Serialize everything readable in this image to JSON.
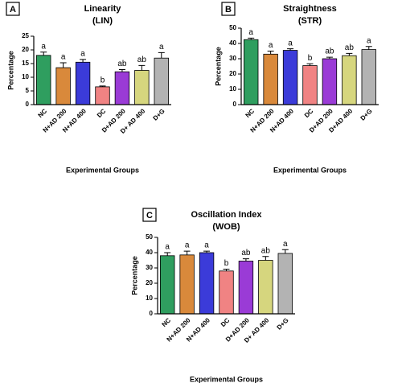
{
  "chart_data": [
    {
      "type": "bar",
      "panel": "A",
      "title": "Linearity",
      "subtitle": "(LIN)",
      "ylabel": "Percentage",
      "xlabel": "Experimental Groups",
      "categories": [
        "NC",
        "N+AD 200",
        "N+AD 400",
        "DC",
        "D+AD 200",
        "D+ AD 400",
        "D+G"
      ],
      "values": [
        18,
        13.5,
        15.5,
        6.5,
        12,
        12.5,
        17
      ],
      "errors": [
        1.2,
        1.8,
        1,
        0.3,
        0.8,
        1.8,
        2
      ],
      "annotations": [
        "a",
        "a",
        "a",
        "b",
        "ab",
        "ab",
        "a"
      ],
      "colors": [
        "#2f9e5f",
        "#d9893b",
        "#3b3bd9",
        "#f08383",
        "#9a3bd6",
        "#d6d67e",
        "#b3b3b3"
      ],
      "ylim": [
        0,
        25
      ],
      "yticks": [
        0,
        5,
        10,
        15,
        20,
        25
      ]
    },
    {
      "type": "bar",
      "panel": "B",
      "title": "Straightness",
      "subtitle": "(STR)",
      "ylabel": "Percentage",
      "xlabel": "Experimental Groups",
      "categories": [
        "NC",
        "N+AD 200",
        "N+AD 400",
        "DC",
        "D+AD 200",
        "D+AD 400",
        "D+G"
      ],
      "values": [
        42.5,
        33,
        35.5,
        25.5,
        30,
        32,
        36
      ],
      "errors": [
        1,
        2,
        1,
        1.2,
        1,
        1.5,
        2
      ],
      "annotations": [
        "a",
        "a",
        "a",
        "b",
        "ab",
        "ab",
        "a"
      ],
      "colors": [
        "#2f9e5f",
        "#d9893b",
        "#3b3bd9",
        "#f08383",
        "#9a3bd6",
        "#d6d67e",
        "#b3b3b3"
      ],
      "ylim": [
        0,
        50
      ],
      "yticks": [
        0,
        10,
        20,
        30,
        40,
        50
      ]
    },
    {
      "type": "bar",
      "panel": "C",
      "title": "Oscillation Index",
      "subtitle": "(WOB)",
      "ylabel": "Percentage",
      "xlabel": "Experimental Groups",
      "categories": [
        "NC",
        "N+AD 200",
        "N+AD 400",
        "DC",
        "D+AD 200",
        "D+ AD 400",
        "D+G"
      ],
      "values": [
        38,
        38.5,
        40,
        28,
        34.5,
        35,
        39.5
      ],
      "errors": [
        2,
        2.5,
        1,
        1.2,
        1.5,
        2.5,
        2.5
      ],
      "annotations": [
        "a",
        "a",
        "a",
        "b",
        "ab",
        "ab",
        "a"
      ],
      "colors": [
        "#2f9e5f",
        "#d9893b",
        "#3b3bd9",
        "#f08383",
        "#9a3bd6",
        "#d6d67e",
        "#b3b3b3"
      ],
      "ylim": [
        0,
        50
      ],
      "yticks": [
        0,
        10,
        20,
        30,
        40,
        50
      ]
    }
  ]
}
